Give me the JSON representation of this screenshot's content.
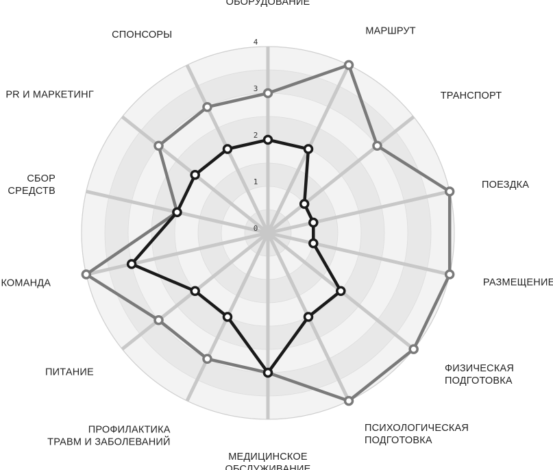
{
  "chart_data": {
    "type": "radar",
    "title": "",
    "categories": [
      [
        "ОБОРУДОВАНИЕ"
      ],
      [
        "МАРШРУТ"
      ],
      [
        "ТРАНСПОРТ"
      ],
      [
        "ПОЕЗДКА"
      ],
      [
        "РАЗМЕЩЕНИЕ"
      ],
      [
        "ФИЗИЧЕСКАЯ",
        "ПОДГОТОВКА"
      ],
      [
        "ПСИХОЛОГИЧЕСКАЯ",
        "ПОДГОТОВКА"
      ],
      [
        "МЕДИЦИНСКОЕ",
        "ОБСЛУЖИВАНИЕ"
      ],
      [
        "ПРОФИЛАКТИКА",
        "ТРАВМ И ЗАБОЛЕВАНИЙ"
      ],
      [
        "ПИТАНИЕ"
      ],
      [
        "КОМАНДА"
      ],
      [
        "СБОР",
        "СРЕДСТВ"
      ],
      [
        "PR И МАРКЕТИНГ"
      ],
      [
        "СПОНСОРЫ"
      ]
    ],
    "rlim": [
      0,
      4
    ],
    "ticks": [
      "0",
      "1",
      "2",
      "3",
      "4"
    ],
    "series": [
      {
        "color": "#7a7a7a",
        "values": [
          3.0,
          4.0,
          3.0,
          4.0,
          4.0,
          4.0,
          4.0,
          3.0,
          3.0,
          3.0,
          4.0,
          2.0,
          3.0,
          3.0
        ]
      },
      {
        "color": "#1a1a1a",
        "values": [
          2.0,
          2.0,
          1.0,
          1.0,
          1.0,
          2.0,
          2.0,
          3.0,
          2.0,
          2.0,
          3.0,
          2.0,
          2.0,
          2.0
        ]
      }
    ],
    "ring_fills": [
      "#f3f3f3",
      "#e8e8e8",
      "#f3f3f3",
      "#e8e8e8",
      "#f3f3f3",
      "#e8e8e8",
      "#f3f3f3",
      "#e8e8e8"
    ],
    "spoke_color": "#c8c8c8",
    "grid": true,
    "legend": "none"
  }
}
